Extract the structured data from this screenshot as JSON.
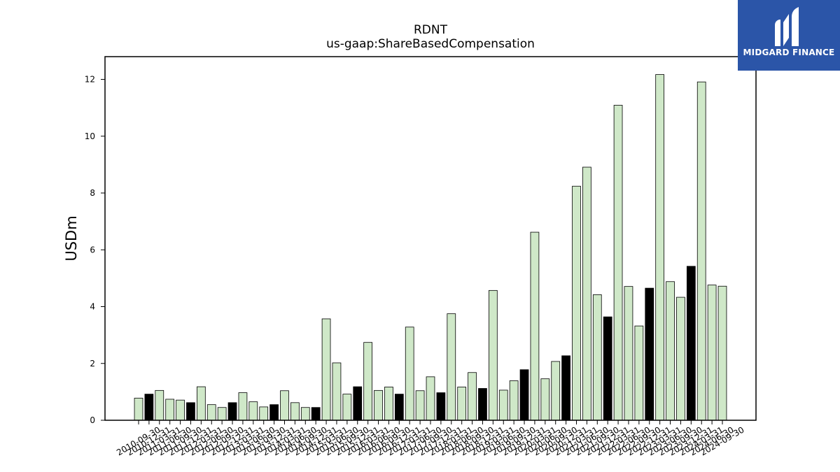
{
  "chart_data": {
    "type": "bar",
    "title": "RDNT",
    "subtitle": "us-gaap:ShareBasedCompensation",
    "xlabel": "",
    "ylabel": "USDm",
    "ylim": [
      0,
      12.8
    ],
    "yticks": [
      0,
      2,
      4,
      6,
      8,
      10,
      12
    ],
    "grid": false,
    "colors": {
      "quarter": "#cfe8c8",
      "fiscal_year_end": "#000000",
      "edge": "#000000"
    },
    "categories": [
      "2010-09-30",
      "2010-12-31",
      "2011-03-31",
      "2011-06-30",
      "2011-09-30",
      "2011-12-31",
      "2012-03-31",
      "2012-06-30",
      "2012-09-30",
      "2012-12-31",
      "2013-03-31",
      "2013-06-30",
      "2013-09-30",
      "2013-12-31",
      "2014-03-31",
      "2014-06-30",
      "2014-09-30",
      "2014-12-31",
      "2015-03-31",
      "2015-06-30",
      "2015-09-30",
      "2015-12-31",
      "2016-03-31",
      "2016-06-30",
      "2016-09-30",
      "2016-12-31",
      "2017-03-31",
      "2017-06-30",
      "2017-09-30",
      "2017-12-31",
      "2018-03-31",
      "2018-06-30",
      "2018-09-30",
      "2018-12-31",
      "2019-03-31",
      "2019-06-30",
      "2019-09-30",
      "2019-12-31",
      "2020-03-31",
      "2020-06-30",
      "2020-09-30",
      "2020-12-31",
      "2021-03-31",
      "2021-06-30",
      "2021-09-30",
      "2021-12-31",
      "2022-03-31",
      "2022-06-30",
      "2022-09-30",
      "2022-12-31",
      "2023-03-31",
      "2023-06-30",
      "2023-09-30",
      "2023-12-31",
      "2024-03-31",
      "2024-06-30",
      "2024-09-30"
    ],
    "values": [
      0.78,
      0.92,
      1.05,
      0.74,
      0.71,
      0.62,
      1.18,
      0.55,
      0.45,
      0.62,
      0.97,
      0.65,
      0.47,
      0.55,
      1.04,
      0.62,
      0.45,
      0.45,
      3.57,
      2.02,
      0.92,
      1.18,
      2.74,
      1.05,
      1.17,
      0.92,
      3.28,
      1.04,
      1.53,
      0.97,
      3.75,
      1.17,
      1.68,
      1.12,
      4.57,
      1.06,
      1.39,
      1.78,
      6.62,
      1.46,
      2.07,
      2.27,
      8.24,
      8.91,
      4.42,
      3.64,
      11.09,
      4.71,
      3.32,
      4.65,
      12.17,
      4.88,
      4.33,
      5.42,
      11.91,
      4.76,
      4.72
    ],
    "highlight": [
      false,
      true,
      false,
      false,
      false,
      true,
      false,
      false,
      false,
      true,
      false,
      false,
      false,
      true,
      false,
      false,
      false,
      true,
      false,
      false,
      false,
      true,
      false,
      false,
      false,
      true,
      false,
      false,
      false,
      true,
      false,
      false,
      false,
      true,
      false,
      false,
      false,
      true,
      false,
      false,
      false,
      true,
      false,
      false,
      false,
      true,
      false,
      false,
      false,
      true,
      false,
      false,
      false,
      true,
      false,
      false,
      false
    ]
  },
  "logo": {
    "text": "MIDGARD FINANCE",
    "color": "#2b55a8"
  }
}
